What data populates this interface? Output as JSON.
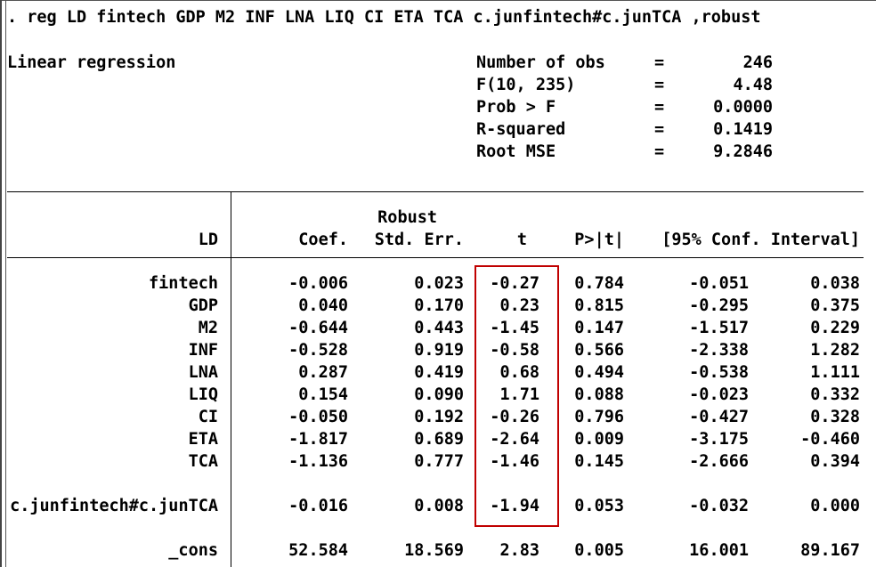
{
  "window": {
    "command": ". reg LD fintech GDP M2 INF LNA LIQ CI ETA TCA c.junfintech#c.junTCA ,robust"
  },
  "summary": {
    "model_label": "Linear regression",
    "stats": [
      {
        "label": "Number of obs",
        "eq": "=",
        "value": "246"
      },
      {
        "label": "F(10, 235)",
        "eq": "=",
        "value": "4.48"
      },
      {
        "label": "Prob > F",
        "eq": "=",
        "value": "0.0000"
      },
      {
        "label": "R-squared",
        "eq": "=",
        "value": "0.1419"
      },
      {
        "label": "Root MSE",
        "eq": "=",
        "value": "9.2846"
      }
    ]
  },
  "table": {
    "header": {
      "robust": "Robust",
      "depvar": "LD",
      "coef": "Coef.",
      "stderr": "Std. Err.",
      "t": "t",
      "p": "P>|t|",
      "ci": "[95% Conf. Interval]"
    },
    "rows": [
      {
        "var": "fintech",
        "coef": "-0.006",
        "se": "0.023",
        "t": "-0.27",
        "p": "0.784",
        "lo": "-0.051",
        "hi": "0.038"
      },
      {
        "var": "GDP",
        "coef": "0.040",
        "se": "0.170",
        "t": "0.23",
        "p": "0.815",
        "lo": "-0.295",
        "hi": "0.375"
      },
      {
        "var": "M2",
        "coef": "-0.644",
        "se": "0.443",
        "t": "-1.45",
        "p": "0.147",
        "lo": "-1.517",
        "hi": "0.229"
      },
      {
        "var": "INF",
        "coef": "-0.528",
        "se": "0.919",
        "t": "-0.58",
        "p": "0.566",
        "lo": "-2.338",
        "hi": "1.282"
      },
      {
        "var": "LNA",
        "coef": "0.287",
        "se": "0.419",
        "t": "0.68",
        "p": "0.494",
        "lo": "-0.538",
        "hi": "1.111"
      },
      {
        "var": "LIQ",
        "coef": "0.154",
        "se": "0.090",
        "t": "1.71",
        "p": "0.088",
        "lo": "-0.023",
        "hi": "0.332"
      },
      {
        "var": "CI",
        "coef": "-0.050",
        "se": "0.192",
        "t": "-0.26",
        "p": "0.796",
        "lo": "-0.427",
        "hi": "0.328"
      },
      {
        "var": "ETA",
        "coef": "-1.817",
        "se": "0.689",
        "t": "-2.64",
        "p": "0.009",
        "lo": "-3.175",
        "hi": "-0.460"
      },
      {
        "var": "TCA",
        "coef": "-1.136",
        "se": "0.777",
        "t": "-1.46",
        "p": "0.145",
        "lo": "-2.666",
        "hi": "0.394"
      },
      {
        "var": "c.junfintech#c.junTCA",
        "coef": "-0.016",
        "se": "0.008",
        "t": "-1.94",
        "p": "0.053",
        "lo": "-0.032",
        "hi": "0.000"
      },
      {
        "var": "_cons",
        "coef": "52.584",
        "se": "18.569",
        "t": "2.83",
        "p": "0.005",
        "lo": "16.001",
        "hi": "89.167"
      }
    ]
  },
  "highlight": {
    "color": "#c00000",
    "target": "t-column"
  }
}
